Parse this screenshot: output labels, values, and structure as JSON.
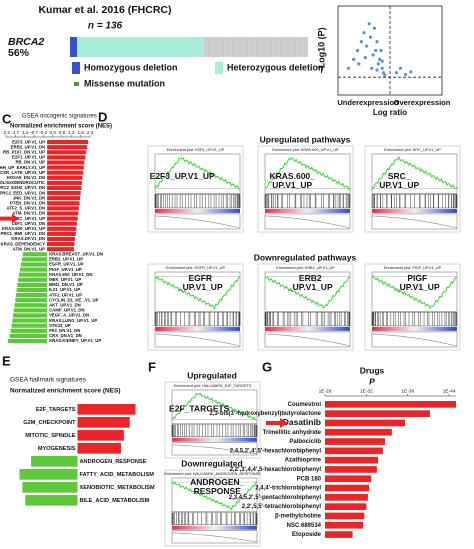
{
  "chart_data": [
    {
      "type": "oncoprint",
      "title": "Kumar et al. 2016 (FHCRC)",
      "subtitle": "n = 136",
      "gene": "BRCA2",
      "percent_label": "56%",
      "xlim": [
        0,
        100
      ],
      "rest_color": "#c8c8c8",
      "series": [
        {
          "name": "Homozygous deletion",
          "color": "#3553c8",
          "values": [
            3
          ]
        },
        {
          "name": "Heterozygous deletion",
          "color": "#a9ecd9",
          "values": [
            53
          ]
        },
        {
          "name": "Missense mutation",
          "color": "#4e9a2e",
          "values": [
            0
          ]
        }
      ]
    },
    {
      "type": "scatter",
      "y_label": "−Log10 (P)",
      "x_label": "Log ratio",
      "annotations": [
        "Underexpression",
        "Overexpression"
      ],
      "xlim": [
        -4,
        4
      ],
      "ylim": [
        0,
        10
      ],
      "vline": 0,
      "hline": 2,
      "color": "#5b8fd8",
      "x": [
        -3.2,
        -2.8,
        -2.5,
        -2.2,
        -2.0,
        -1.8,
        -1.6,
        -1.5,
        -1.3,
        -1.2,
        -1.1,
        -1.0,
        -0.9,
        -0.8,
        -0.7,
        -0.6,
        -0.5,
        -0.4,
        -2.4,
        -1.9,
        -1.4,
        -1.0,
        -0.6,
        0.5,
        0.8,
        1.2,
        1.6
      ],
      "y": [
        3,
        4,
        5,
        6,
        7,
        5.5,
        8,
        6.5,
        4.5,
        7.5,
        5,
        6,
        3.5,
        4,
        5,
        3,
        2.5,
        2.2,
        3.5,
        4.2,
        3,
        2.8,
        3.8,
        2.5,
        3,
        2.3,
        2.6
      ]
    },
    {
      "type": "diverging_bar",
      "panel": "C",
      "title": "GSEA oncogenic signatures",
      "x_label": "Normalized enrichment score (NES)",
      "xlim": [
        -2.2,
        2.3
      ],
      "xticks": [
        -2.2,
        -1.7,
        -1.2,
        -0.7,
        -0.2,
        0.3,
        0.8,
        1.3,
        1.8,
        2.3
      ],
      "pos_color": "#e8262a",
      "neg_color": "#5cc83a",
      "highlight": 15,
      "categories": [
        "E2F3_UP.V1_UP",
        "ERB2_UP.V1_DN",
        "RB_P107_DN.V1_UP",
        "E2F1_UP.V1_UP",
        "RB_DN.V1_UP",
        "GCNP_SHH_UP_EARLY.V1_UP",
        "CSR_LATE_UP.V1_UP",
        "HOXA9_DN.V1_DN",
        "CAHOY_OLIGODENDROCUTIC",
        "PRC2_EZH2_UP.V1_DN",
        "PRC2_EED_UP.V1_DN",
        "JNK_DN.V1_DN",
        "PTEN_DN.V1_DN",
        "ATF2_S_UP.V1_DN",
        "ATM_DN.V1_DN",
        "SRC_UP.V1_UP",
        "LEF1_UP.V1_DN",
        "KRAS.600_UP.V1_UP",
        "PRC1_BMI_UP.V1_DN",
        "KRAS.DF.V1_DN",
        "SINGH_KRAS_DEPENDENCY",
        "ATM_DN.V1_UP",
        "KRAS.BREAST_UP.V1_DN",
        "ERB2_UP.V1_UP",
        "EGFR_UP.V1_UP",
        "PIGF_UP.V1_UP",
        "KRAS.600_UP.V1_DN",
        "MEK_UP.V1_UP",
        "BMI1_DN.V1_UP",
        "IL21_UP.V1_UP",
        "ATF2_UP.V1_UP",
        "CYCLIN_D1_KE_.V1_UP",
        "AKT_UP.V1_DN",
        "CAMP_UP.V1_DN",
        "VEGF_A_UP.V1_DN",
        "KRAS.LUNG_UP.V1_UP",
        "STK33_UP",
        "P53_DN.V1_DN",
        "CRX_DN.V1_DN",
        "KRAS.KIDNEY_UP.V1_UP"
      ],
      "values": [
        2.2,
        2.15,
        2.1,
        2.05,
        2.0,
        1.97,
        1.94,
        1.9,
        1.87,
        1.84,
        1.8,
        1.77,
        1.74,
        1.7,
        1.67,
        1.64,
        1.6,
        1.57,
        1.54,
        1.5,
        1.47,
        1.44,
        -1.3,
        -1.35,
        -1.4,
        -1.45,
        -1.5,
        -1.55,
        -1.6,
        -1.63,
        -1.67,
        -1.7,
        -1.74,
        -1.78,
        -1.82,
        -1.86,
        -1.9,
        -1.95,
        -2.0,
        -2.1
      ]
    },
    {
      "type": "gsea",
      "panel": "D",
      "groups": [
        {
          "title": "Upregulated pathways",
          "plots": [
            {
              "title": "Enrichment plot: E2F3_UP.V1_UP",
              "label": [
                "E2F3_UP.V1_UP"
              ],
              "direction": "up"
            },
            {
              "title": "Enrichment plot: KRAS.600_UP.V1_UP",
              "label": [
                "KRAS.600_",
                "UP.V1_UP"
              ],
              "direction": "up"
            },
            {
              "title": "Enrichment plot: SRC_UP.V1_UP",
              "label": [
                "SRC_",
                "UP.V1_UP"
              ],
              "direction": "up",
              "label_color": "#e8262a"
            }
          ]
        },
        {
          "title": "Downregulated pathways",
          "plots": [
            {
              "title": "Enrichment plot: EGFR_UP.V1_UP",
              "label": [
                "EGFR",
                "_UP.V1_UP"
              ],
              "direction": "down"
            },
            {
              "title": "Enrichment plot: ERB2_UP.V1_UP",
              "label": [
                "ERB2",
                "_UP.V1_UP"
              ],
              "direction": "down"
            },
            {
              "title": "Enrichment plot: PIGF_UP.V1_UP",
              "label": [
                "PIGF",
                "_UP.V1_UP"
              ],
              "direction": "down"
            }
          ]
        }
      ]
    },
    {
      "type": "diverging_bar",
      "panel": "E",
      "title": "GSEA hallmark signatures",
      "x_label": "Normalized enrichment score (NES)",
      "xlim": [
        -2.5,
        2.5
      ],
      "pos_color": "#e8262a",
      "neg_color": "#5cc83a",
      "highlight_text": 4,
      "categories": [
        "E2F_TARGETS",
        "G2M_CHECKPOINT",
        "MITOTIC_SPINDLE",
        "MYOGENESIS",
        "ANDROGEN_RESPONSE",
        "FATTY_ACID_METABOLISM",
        "XENOBIOTIC_METABOLISM",
        "BILE_ACID_METABOLISM"
      ],
      "values": [
        2.0,
        1.8,
        1.6,
        1.5,
        -1.6,
        -2.0,
        -1.9,
        -1.8
      ]
    },
    {
      "type": "gsea",
      "panel": "F",
      "groups": [
        {
          "title": "Upregulated",
          "plots": [
            {
              "title": "Enrichment plot: HALLMARK_E2F_TARGETS",
              "label": [
                "E2F_TARGETS"
              ],
              "direction": "up"
            }
          ]
        },
        {
          "title": "Downregulated",
          "plots": [
            {
              "title": "Enrichment plot: HALLMARK_ANDROGEN_RESPONSE",
              "label": [
                "ANDROGEN_",
                "RESPONSE"
              ],
              "direction": "down"
            }
          ]
        }
      ]
    },
    {
      "type": "hbar_log",
      "panel": "G",
      "title": "Drugs",
      "x_label": "P",
      "color": "#e8262a",
      "highlight": 2,
      "xlim": [
        1e-26,
        1e-45
      ],
      "xticks": [
        {
          "value": 1e-26,
          "label": "1E-26"
        },
        {
          "value": 1e-32,
          "label": "1E-32"
        },
        {
          "value": 1e-38,
          "label": "1E-38"
        },
        {
          "value": 1e-44,
          "label": "1E-44"
        }
      ],
      "categories": [
        "Coumestrol",
        "2,3-bis(3'-hydroxybenzyl)butyrolactone",
        "Dasatinib",
        "Trimellitic anhydride",
        "Palbociclib",
        "2,4,5,2',4',5'-hexachlorobiphenyl",
        "Azathioprine",
        "2,2',3',4,4',5-hexachlorobiphenyl",
        "PCB 180",
        "2,4,4'-trichlorobiphenyl",
        "2,3,4,5,2',5'-pentachlorobiphenyl",
        "2,2',5,5'-tetrachlorobiphenyl",
        "β-methylcholine",
        "NSC 689534",
        "Etoposide"
      ],
      "values": [
        1e-45,
        6e-42,
        2.5e-38,
        2e-36,
        2e-35,
        4e-35,
        2e-34,
        3e-34,
        2e-33,
        4e-33,
        6e-33,
        1e-32,
        2e-32,
        3e-32,
        1e-30
      ]
    }
  ]
}
